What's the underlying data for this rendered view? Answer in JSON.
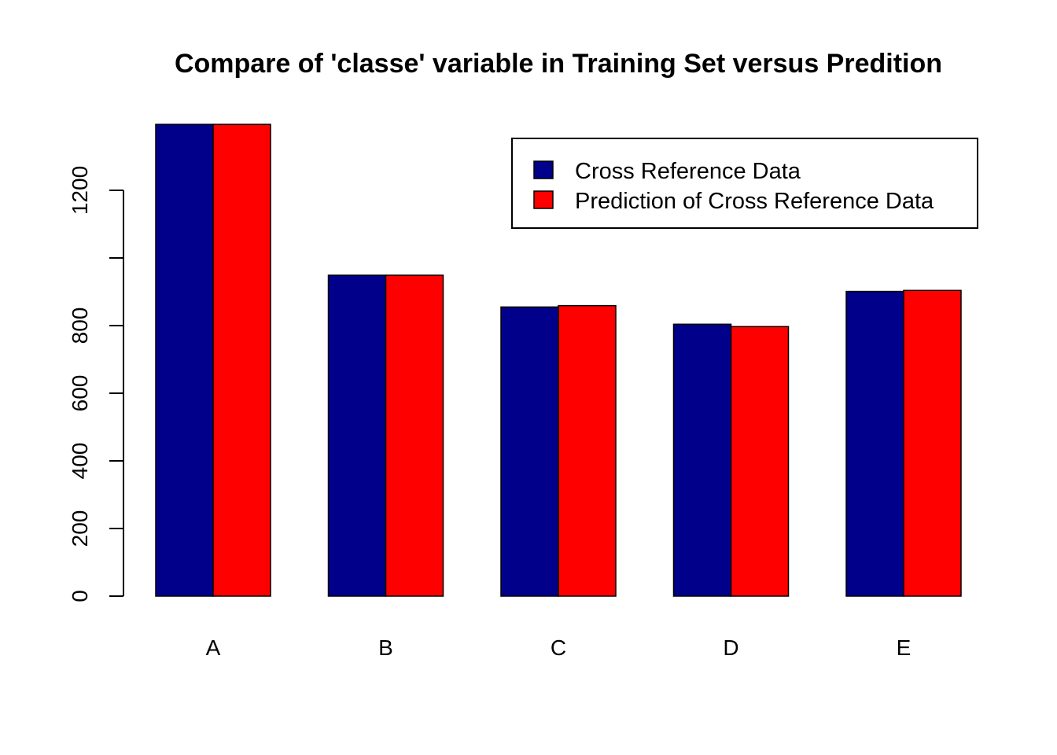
{
  "chart_data": {
    "type": "bar",
    "title": "Compare of 'classe' variable in Training Set versus Predition",
    "xlabel": "",
    "ylabel": "",
    "categories": [
      "A",
      "B",
      "C",
      "D",
      "E"
    ],
    "series": [
      {
        "name": "Cross Reference Data",
        "color": "#00008B",
        "values": [
          1395,
          949,
          855,
          804,
          901
        ]
      },
      {
        "name": "Prediction of Cross Reference Data",
        "color": "#FF0000",
        "values": [
          1395,
          949,
          859,
          797,
          904
        ]
      }
    ],
    "ylim": [
      0,
      1400
    ],
    "yticks": [
      0,
      200,
      400,
      600,
      800,
      1000,
      1200
    ],
    "ytick_labels": [
      "0",
      "200",
      "400",
      "600",
      "800",
      "",
      "1200"
    ],
    "grid": false,
    "legend_position": "top-right"
  }
}
